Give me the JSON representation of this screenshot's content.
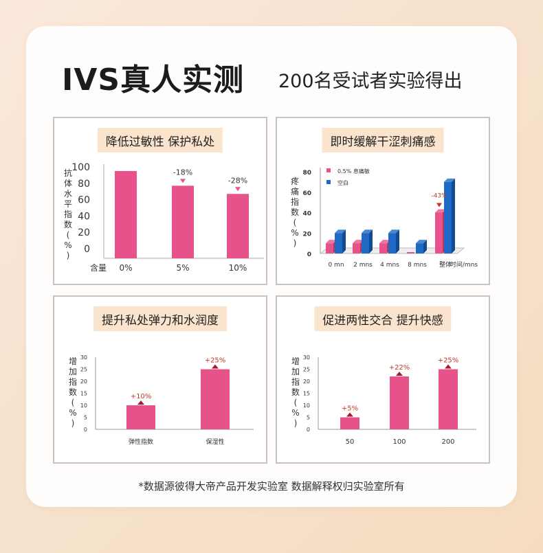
{
  "page": {
    "title_main": "IVS真人实测",
    "title_sub": "200名受试者实验得出",
    "footer": "*数据源彼得大帝产品开发实验室 数据解释权归实验室所有"
  },
  "colors": {
    "pink": "#e8528a",
    "blue": "#1d69c4",
    "tag": "#fbe4cd",
    "annotation": "#c0392b"
  },
  "panels": [
    {
      "heading": "降低过敏性 保护私处"
    },
    {
      "heading": "即时缓解干涩刺痛感"
    },
    {
      "heading": "提升私处弹力和水润度"
    },
    {
      "heading": "促进两性交合 提升快感"
    }
  ],
  "chart_data": [
    {
      "type": "bar",
      "ylabel": "抗体水平指数(%)",
      "xlabel": "含量",
      "categories": [
        "0%",
        "5%",
        "10%"
      ],
      "values": [
        95,
        77,
        67
      ],
      "annotations": [
        "",
        "-18%",
        "-28%"
      ],
      "ylim": [
        0,
        100
      ],
      "yticks": [
        0,
        20,
        40,
        60,
        80,
        100
      ],
      "grid": false
    },
    {
      "type": "bar",
      "ylabel": "疼痛指数(%)",
      "xlabel": "时间/mns",
      "categories": [
        "0 mn",
        "2 mns",
        "4 mns",
        "8 mns",
        "整体"
      ],
      "series": [
        {
          "name": "0.5% 息痛敏",
          "values": [
            10,
            10,
            10,
            0,
            40
          ]
        },
        {
          "name": "空白",
          "values": [
            20,
            20,
            20,
            10,
            70
          ]
        }
      ],
      "annotation": {
        "category": "整体",
        "text": "-43%"
      },
      "ylim": [
        0,
        80
      ],
      "yticks": [
        0,
        20,
        40,
        60,
        80
      ],
      "legend": "top-left",
      "grid": false
    },
    {
      "type": "bar",
      "ylabel": "增加指数(%)",
      "categories": [
        "弹性指数",
        "保湿性"
      ],
      "values": [
        10,
        25
      ],
      "annotations": [
        "+10%",
        "+25%"
      ],
      "ylim": [
        0,
        30
      ],
      "yticks": [
        0,
        5,
        10,
        15,
        20,
        25,
        30
      ],
      "grid": false
    },
    {
      "type": "bar",
      "ylabel": "增加指数(%)",
      "categories": [
        "50",
        "100",
        "200"
      ],
      "values": [
        5,
        22,
        25
      ],
      "annotations": [
        "+5%",
        "+22%",
        "+25%"
      ],
      "ylim": [
        0,
        30
      ],
      "yticks": [
        0,
        5,
        10,
        15,
        20,
        25,
        30
      ],
      "grid": false
    }
  ]
}
